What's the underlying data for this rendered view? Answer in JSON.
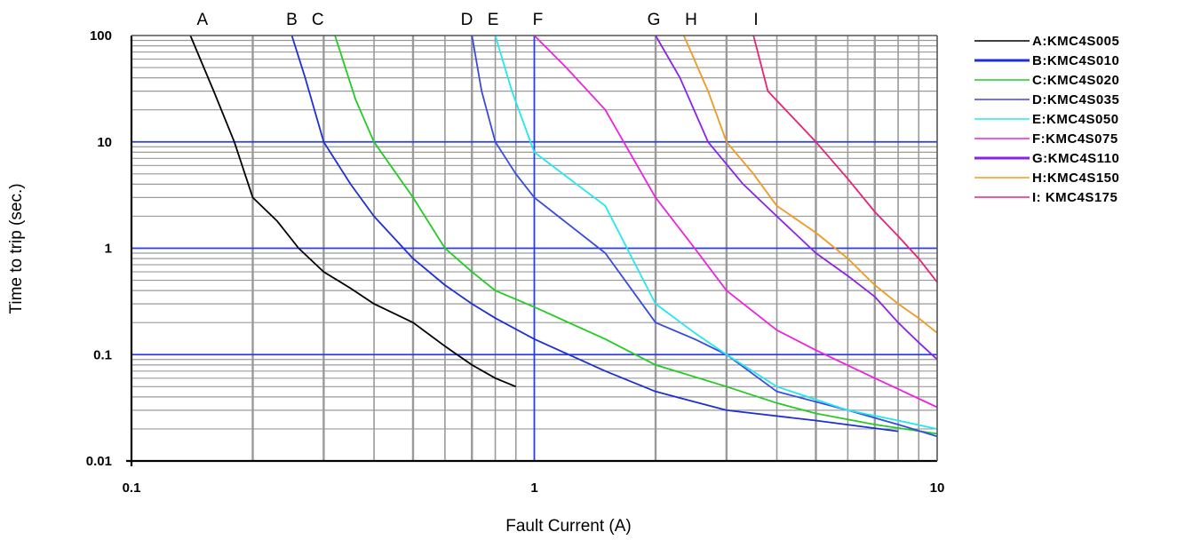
{
  "chart_data": {
    "type": "line",
    "xlabel": "Fault Current (A)",
    "ylabel": "Time to trip (sec.)",
    "xscale": "log",
    "yscale": "log",
    "xlim": [
      0.1,
      10
    ],
    "ylim": [
      0.01,
      100
    ],
    "x_tick_labels": [
      {
        "value": 0.1,
        "label": "0.1"
      },
      {
        "value": 1,
        "label": "1"
      },
      {
        "value": 10,
        "label": "10"
      }
    ],
    "y_tick_labels": [
      {
        "value": 100,
        "label": "100"
      },
      {
        "value": 10,
        "label": "10"
      },
      {
        "value": 1,
        "label": "1"
      },
      {
        "value": 0.1,
        "label": "0.1"
      },
      {
        "value": 0.01,
        "label": "0.01"
      }
    ],
    "grid": true,
    "legend_position": "right",
    "highlight_color": "#2a3de0",
    "grid_color": "#9a9a9a",
    "series": [
      {
        "letter": "A",
        "legend": "A:KMC4S005",
        "color": "#000000",
        "points": [
          [
            0.14,
            100
          ],
          [
            0.16,
            30
          ],
          [
            0.18,
            10
          ],
          [
            0.2,
            3
          ],
          [
            0.23,
            1.8
          ],
          [
            0.26,
            1
          ],
          [
            0.3,
            0.6
          ],
          [
            0.35,
            0.42
          ],
          [
            0.4,
            0.3
          ],
          [
            0.5,
            0.2
          ],
          [
            0.6,
            0.12
          ],
          [
            0.7,
            0.08
          ],
          [
            0.8,
            0.06
          ],
          [
            0.9,
            0.05
          ]
        ]
      },
      {
        "letter": "B",
        "legend": "B:KMC4S010",
        "color": "#1f2fd6",
        "points": [
          [
            0.25,
            100
          ],
          [
            0.27,
            40
          ],
          [
            0.3,
            10
          ],
          [
            0.35,
            4
          ],
          [
            0.4,
            2
          ],
          [
            0.5,
            0.8
          ],
          [
            0.6,
            0.45
          ],
          [
            0.7,
            0.3
          ],
          [
            0.8,
            0.22
          ],
          [
            1,
            0.14
          ],
          [
            1.5,
            0.07
          ],
          [
            2,
            0.045
          ],
          [
            3,
            0.03
          ],
          [
            5,
            0.024
          ],
          [
            8,
            0.019
          ]
        ]
      },
      {
        "letter": "C",
        "legend": "C:KMC4S020",
        "color": "#22cc22",
        "points": [
          [
            0.32,
            100
          ],
          [
            0.36,
            25
          ],
          [
            0.4,
            10
          ],
          [
            0.5,
            3
          ],
          [
            0.6,
            1
          ],
          [
            0.7,
            0.6
          ],
          [
            0.8,
            0.4
          ],
          [
            1,
            0.28
          ],
          [
            1.5,
            0.14
          ],
          [
            2,
            0.08
          ],
          [
            3,
            0.05
          ],
          [
            4,
            0.035
          ],
          [
            5,
            0.028
          ],
          [
            7,
            0.022
          ],
          [
            10,
            0.018
          ]
        ]
      },
      {
        "letter": "D",
        "legend": "D:KMC4S035",
        "color": "#3a4ae0",
        "points": [
          [
            0.7,
            100
          ],
          [
            0.74,
            30
          ],
          [
            0.8,
            10
          ],
          [
            0.9,
            5
          ],
          [
            1,
            3
          ],
          [
            1.5,
            0.9
          ],
          [
            2,
            0.2
          ],
          [
            2.5,
            0.14
          ],
          [
            3,
            0.1
          ],
          [
            4,
            0.045
          ],
          [
            6,
            0.03
          ],
          [
            8,
            0.022
          ],
          [
            10,
            0.017
          ]
        ]
      },
      {
        "letter": "E",
        "legend": "E:KMC4S050",
        "color": "#22e8f0",
        "points": [
          [
            0.8,
            100
          ],
          [
            0.88,
            30
          ],
          [
            1,
            8
          ],
          [
            1.5,
            2.5
          ],
          [
            2,
            0.3
          ],
          [
            2.5,
            0.16
          ],
          [
            3,
            0.1
          ],
          [
            4,
            0.05
          ],
          [
            6,
            0.03
          ],
          [
            8,
            0.024
          ],
          [
            10,
            0.02
          ]
        ]
      },
      {
        "letter": "F",
        "legend": "F:KMC4S075",
        "color": "#ee22dd",
        "points": [
          [
            1,
            100
          ],
          [
            1.2,
            50
          ],
          [
            1.5,
            20
          ],
          [
            2,
            3
          ],
          [
            2.5,
            1
          ],
          [
            3,
            0.4
          ],
          [
            4,
            0.17
          ],
          [
            5,
            0.11
          ],
          [
            7,
            0.06
          ],
          [
            10,
            0.032
          ]
        ]
      },
      {
        "letter": "G",
        "legend": "G:KMC4S110",
        "color": "#8a22e8",
        "points": [
          [
            2,
            100
          ],
          [
            2.3,
            40
          ],
          [
            2.7,
            10
          ],
          [
            3.3,
            4
          ],
          [
            4,
            2
          ],
          [
            5,
            0.9
          ],
          [
            6,
            0.55
          ],
          [
            7,
            0.35
          ],
          [
            8,
            0.2
          ],
          [
            9,
            0.13
          ],
          [
            10,
            0.09
          ]
        ]
      },
      {
        "letter": "H",
        "legend": "H:KMC4S150",
        "color": "#f09a22",
        "points": [
          [
            2.35,
            100
          ],
          [
            2.7,
            30
          ],
          [
            3,
            10
          ],
          [
            3.5,
            5
          ],
          [
            4,
            2.5
          ],
          [
            5,
            1.4
          ],
          [
            6,
            0.8
          ],
          [
            7,
            0.45
          ],
          [
            8,
            0.3
          ],
          [
            9,
            0.22
          ],
          [
            10,
            0.16
          ]
        ]
      },
      {
        "letter": "I",
        "legend": "I: KMC4S175",
        "color": "#e8227a",
        "points": [
          [
            3.5,
            100
          ],
          [
            3.8,
            30
          ],
          [
            5,
            10
          ],
          [
            6,
            4.5
          ],
          [
            7,
            2.2
          ],
          [
            8,
            1.3
          ],
          [
            9,
            0.8
          ],
          [
            10,
            0.48
          ]
        ]
      }
    ],
    "curve_letter_x": [
      {
        "letter": "A",
        "x": 0.15
      },
      {
        "letter": "B",
        "x": 0.25
      },
      {
        "letter": "C",
        "x": 0.29
      },
      {
        "letter": "D",
        "x": 0.68
      },
      {
        "letter": "E",
        "x": 0.79
      },
      {
        "letter": "F",
        "x": 1.02
      },
      {
        "letter": "G",
        "x": 1.98
      },
      {
        "letter": "H",
        "x": 2.45
      },
      {
        "letter": "I",
        "x": 3.55
      }
    ]
  }
}
